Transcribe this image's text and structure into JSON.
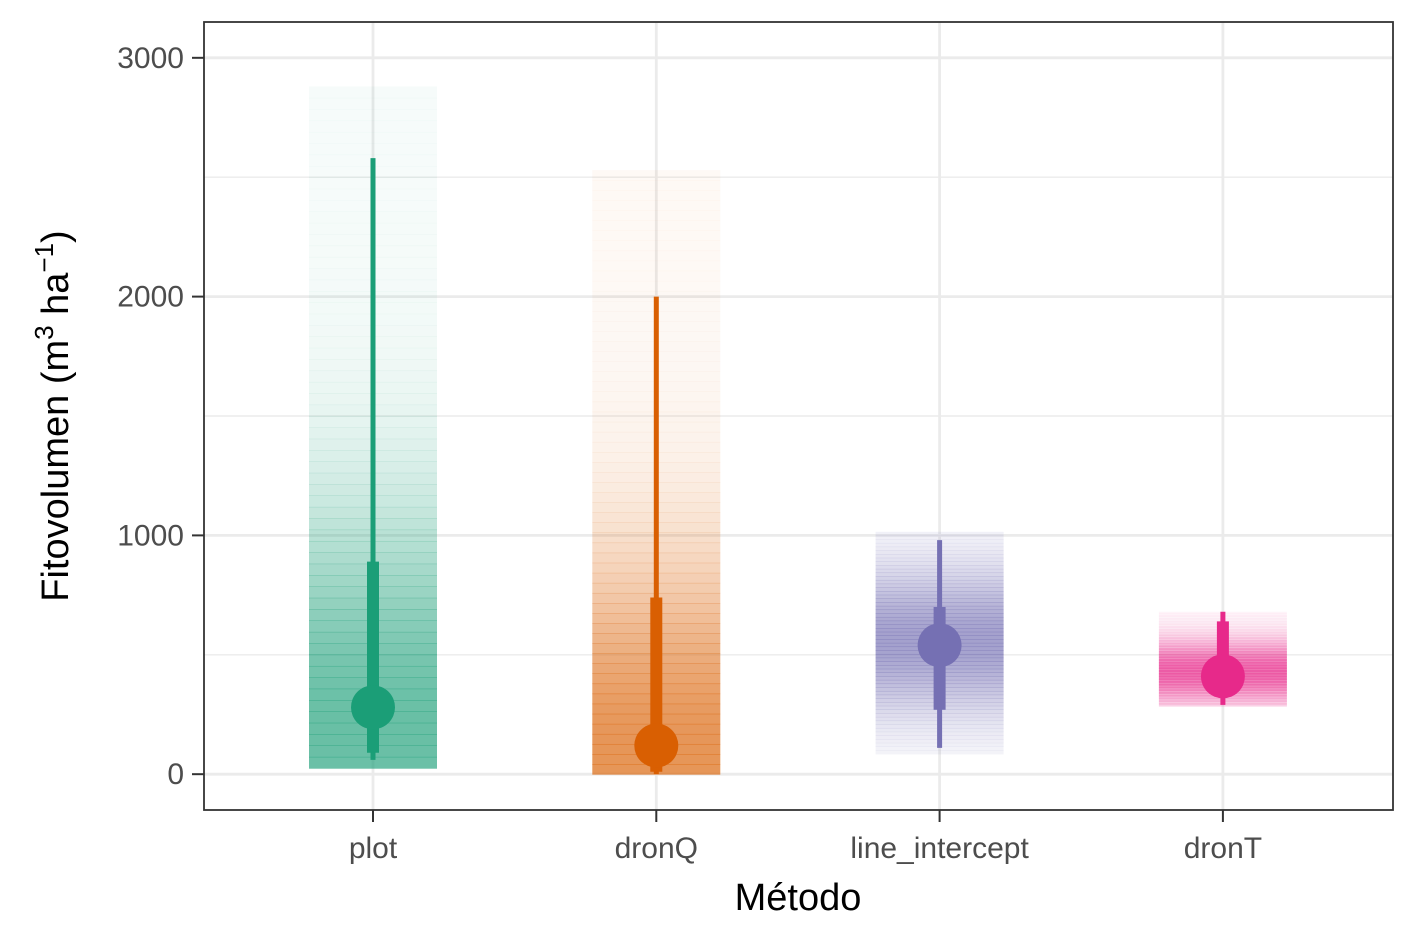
{
  "chart_data": {
    "type": "interval",
    "xlabel": "Método",
    "ylabel": {
      "main": "Fitovolumen (m",
      "sup1": "3",
      "middle": " ha",
      "sup2": "−1",
      "end": ")"
    },
    "categories": [
      "plot",
      "dronQ",
      "line_intercept",
      "dronT"
    ],
    "ylim": [
      -150,
      3150
    ],
    "yticks": [
      0,
      1000,
      2000,
      3000
    ],
    "ytick_labels": [
      "0",
      "1000",
      "2000",
      "3000"
    ],
    "grid": true,
    "legend": "none",
    "series": [
      {
        "category": "plot",
        "color": "#1b9e77",
        "point": 280,
        "interval_66": [
          90,
          890
        ],
        "interval_95": [
          60,
          2580
        ],
        "density_range": [
          25,
          2880
        ],
        "density_mode": 180
      },
      {
        "category": "dronQ",
        "color": "#d95f02",
        "point": 120,
        "interval_66": [
          10,
          740
        ],
        "interval_95": [
          0,
          2000
        ],
        "density_range": [
          0,
          2530
        ],
        "density_mode": 80
      },
      {
        "category": "line_intercept",
        "color": "#7570b3",
        "point": 540,
        "interval_66": [
          270,
          700
        ],
        "interval_95": [
          110,
          980
        ],
        "density_range": [
          85,
          1015
        ],
        "density_mode": 560
      },
      {
        "category": "dronT",
        "color": "#e7298a",
        "point": 410,
        "interval_66": [
          380,
          640
        ],
        "interval_95": [
          290,
          680
        ],
        "density_range": [
          285,
          680
        ],
        "density_mode": 430
      }
    ]
  }
}
